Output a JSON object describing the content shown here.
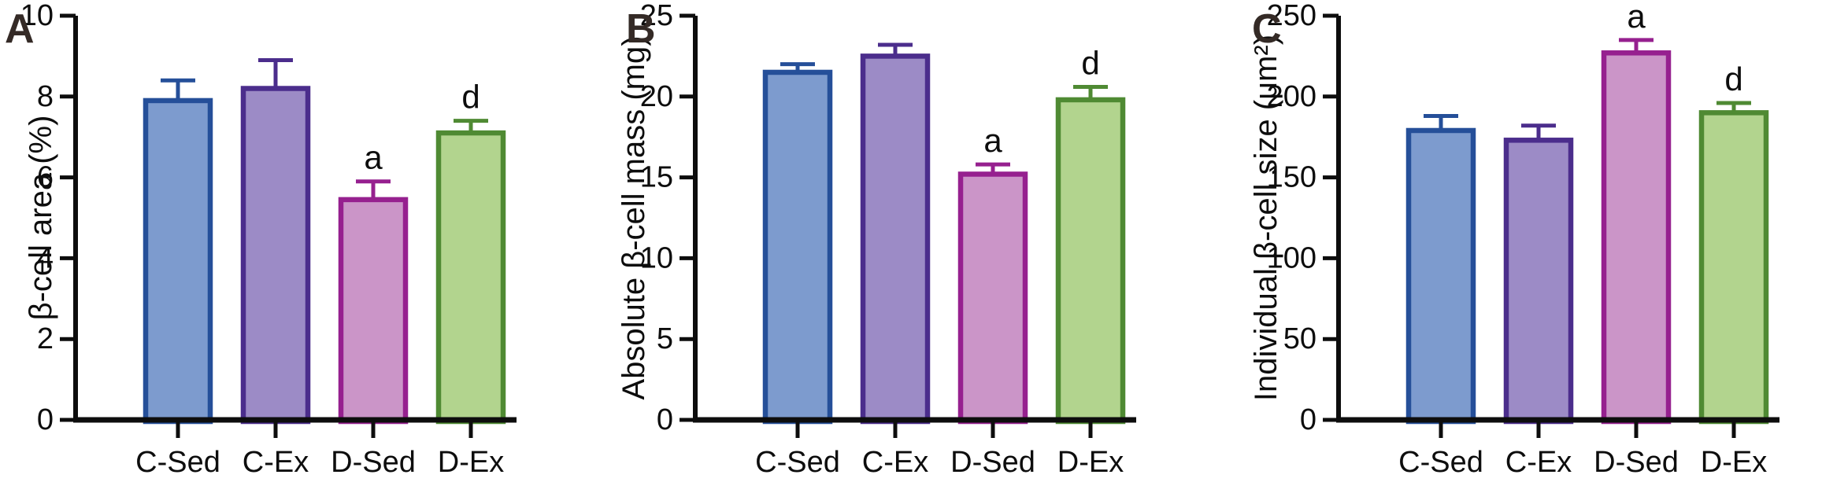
{
  "figure": {
    "groups": [
      "C-Sed",
      "C-Ex",
      "D-Sed",
      "D-Ex"
    ],
    "group_colors": [
      {
        "name": "blue",
        "fill": "#7d9bce",
        "stroke": "#254f99"
      },
      {
        "name": "purple",
        "fill": "#9c8bc6",
        "stroke": "#4b2d8c"
      },
      {
        "name": "magenta",
        "fill": "#cb95c8",
        "stroke": "#96208f"
      },
      {
        "name": "green",
        "fill": "#b2d48e",
        "stroke": "#4f8a33"
      }
    ],
    "axis_color": "#0d0d0d",
    "panel_letter_color": "#342a26",
    "annotation_color": "#0d0d0d",
    "background_color": "#ffffff"
  },
  "chart_data": [
    {
      "type": "bar",
      "panel_label": "A",
      "title": "",
      "xlabel": "",
      "ylabel": "β-cell area (%)",
      "categories": [
        "C-Sed",
        "C-Ex",
        "D-Sed",
        "D-Ex"
      ],
      "values": [
        7.9,
        8.2,
        5.45,
        7.1
      ],
      "errors_plus": [
        0.5,
        0.7,
        0.45,
        0.3
      ],
      "annotations": [
        "",
        "",
        "a",
        "d"
      ],
      "ylim": [
        0,
        10
      ],
      "yticks": [
        0,
        2,
        4,
        6,
        8,
        10
      ],
      "grid": false,
      "legend_position": "none"
    },
    {
      "type": "bar",
      "panel_label": "B",
      "title": "",
      "xlabel": "",
      "ylabel": "Absolute β-cell mass (mg)",
      "categories": [
        "C-Sed",
        "C-Ex",
        "D-Sed",
        "D-Ex"
      ],
      "values": [
        21.5,
        22.5,
        15.2,
        19.8
      ],
      "errors_plus": [
        0.5,
        0.7,
        0.6,
        0.8
      ],
      "annotations": [
        "",
        "",
        "a",
        "d"
      ],
      "ylim": [
        0,
        25
      ],
      "yticks": [
        0,
        5,
        10,
        15,
        20,
        25
      ],
      "grid": false,
      "legend_position": "none"
    },
    {
      "type": "bar",
      "panel_label": "C",
      "title": "",
      "xlabel": "",
      "ylabel": "Individual β-cell size (μm²)",
      "categories": [
        "C-Sed",
        "C-Ex",
        "D-Sed",
        "D-Ex"
      ],
      "values": [
        179,
        173,
        227,
        190
      ],
      "errors_plus": [
        9,
        9,
        8,
        6
      ],
      "annotations": [
        "",
        "",
        "a",
        "d"
      ],
      "ylim": [
        0,
        250
      ],
      "yticks": [
        0,
        50,
        100,
        150,
        200,
        250
      ],
      "grid": false,
      "legend_position": "none"
    }
  ]
}
